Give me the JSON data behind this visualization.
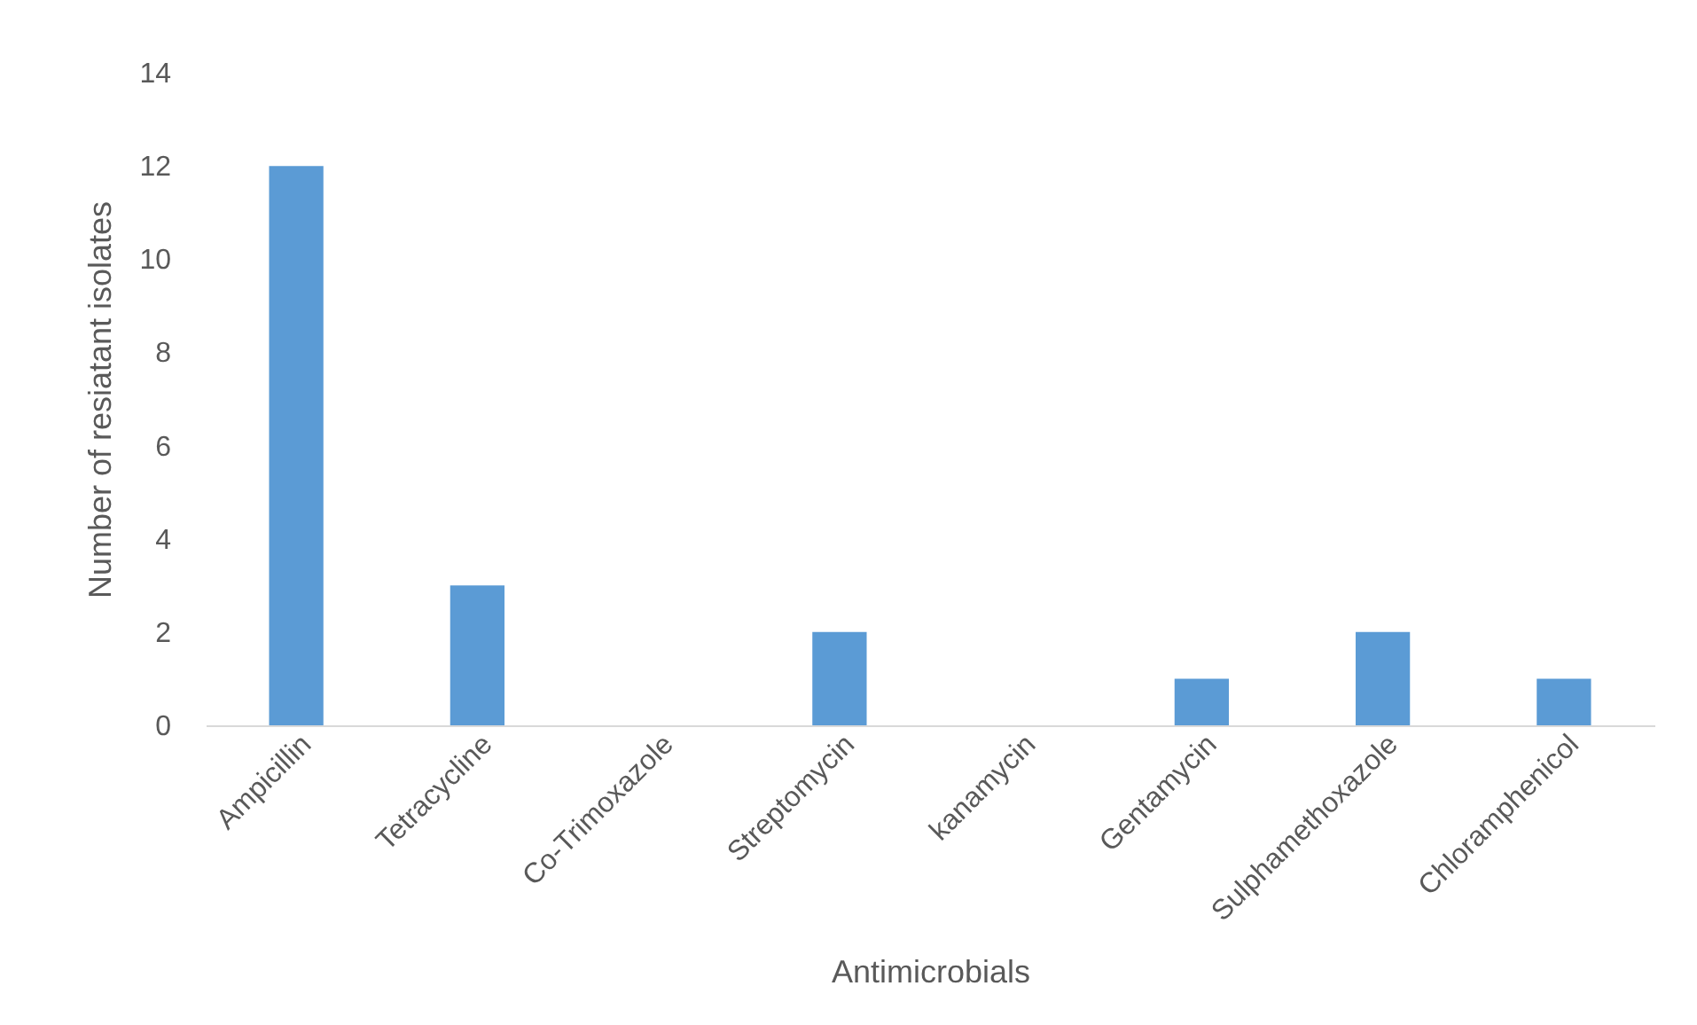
{
  "chart_data": {
    "type": "bar",
    "xlabel": "Antimicrobials",
    "ylabel": "Number of resiatant isolates",
    "categories": [
      "Ampicillin",
      "Tetracycline",
      "Co-Trimoxazole",
      "Streptomycin",
      "kanamycin",
      "Gentamycin",
      "Sulphamethoxazole",
      "Chloramphenicol"
    ],
    "values": [
      12,
      3,
      0,
      2,
      0,
      1,
      2,
      1
    ],
    "color": "#5b9bd5",
    "ylim": [
      0,
      14
    ],
    "yticks": [
      0,
      2,
      4,
      6,
      8,
      10,
      12,
      14
    ],
    "grid": false
  }
}
